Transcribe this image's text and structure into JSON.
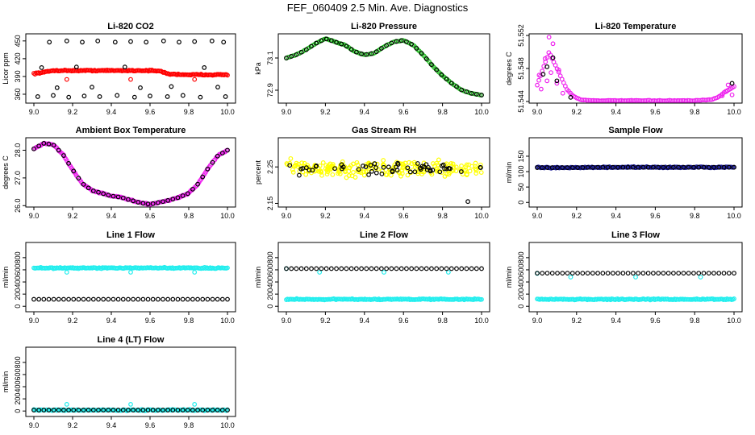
{
  "main_title": "FEF_060409  2.5 Min. Ave. Diagnostics",
  "colors": {
    "black": "#000000",
    "red": "#ff0000",
    "green": "#22bb22",
    "magenta": "#ee22ee",
    "yellow": "#ffff00",
    "blue": "#1a1a99",
    "cyan": "#22eeee"
  },
  "chart_data": [
    {
      "id": "co2",
      "type": "scatter",
      "title": "Li-820 CO2",
      "ylabel": "Licor ppm",
      "xlim": [
        9.0,
        10.0
      ],
      "ylim": [
        345,
        462
      ],
      "xticks": [
        "9.0",
        "9.2",
        "9.4",
        "9.6",
        "9.8",
        "10.0"
      ],
      "yticks": [
        "360",
        "390",
        "420",
        "450"
      ],
      "series": [
        {
          "name": "avg",
          "color": "red",
          "style": "band",
          "x": [
            9.0,
            9.05,
            9.1,
            9.2,
            9.3,
            9.4,
            9.5,
            9.6,
            9.65,
            9.7,
            9.8,
            9.9,
            10.0
          ],
          "y": [
            395,
            397,
            400,
            400,
            400,
            400,
            400,
            400,
            399,
            394,
            393,
            393,
            393
          ]
        },
        {
          "name": "red-outliers",
          "color": "red",
          "style": "points",
          "x": [
            9.17,
            9.5,
            9.83
          ],
          "y": [
            385,
            385,
            385
          ]
        },
        {
          "name": "black-hi",
          "color": "black",
          "style": "points",
          "x": [
            9.08,
            9.17,
            9.25,
            9.33,
            9.42,
            9.5,
            9.58,
            9.67,
            9.75,
            9.83,
            9.92,
            9.98
          ],
          "y": [
            448,
            450,
            448,
            450,
            448,
            449,
            448,
            450,
            448,
            449,
            450,
            448
          ]
        },
        {
          "name": "black-lo",
          "color": "black",
          "style": "points",
          "x": [
            9.02,
            9.1,
            9.18,
            9.26,
            9.34,
            9.43,
            9.52,
            9.6,
            9.69,
            9.77,
            9.86,
            9.99
          ],
          "y": [
            356,
            358,
            355,
            357,
            356,
            358,
            355,
            357,
            356,
            358,
            355,
            356
          ]
        },
        {
          "name": "black-mid",
          "color": "black",
          "style": "points",
          "x": [
            9.04,
            9.12,
            9.22,
            9.3,
            9.47,
            9.55,
            9.71,
            9.88,
            9.95
          ],
          "y": [
            405,
            371,
            406,
            372,
            406,
            371,
            373,
            405,
            372
          ]
        }
      ]
    },
    {
      "id": "press",
      "type": "scatter",
      "title": "Li-820 Pressure",
      "ylabel": "kPa",
      "xlim": [
        9.0,
        10.0
      ],
      "ylim": [
        72.82,
        73.25
      ],
      "xticks": [
        "9.0",
        "9.2",
        "9.4",
        "9.6",
        "9.8",
        "10.0"
      ],
      "yticks": [
        "72.9",
        "73.1"
      ],
      "series": [
        {
          "name": "avg",
          "color": "green",
          "style": "curve",
          "x": [
            9.0,
            9.05,
            9.1,
            9.15,
            9.2,
            9.25,
            9.3,
            9.35,
            9.4,
            9.45,
            9.5,
            9.55,
            9.6,
            9.65,
            9.7,
            9.75,
            9.8,
            9.85,
            9.9,
            9.95,
            10.0
          ],
          "y": [
            73.1,
            73.12,
            73.15,
            73.19,
            73.22,
            73.2,
            73.18,
            73.14,
            73.12,
            73.13,
            73.17,
            73.2,
            73.21,
            73.18,
            73.12,
            73.05,
            72.99,
            72.94,
            72.9,
            72.88,
            72.87
          ]
        },
        {
          "name": "scaled",
          "color": "black",
          "style": "curve-points",
          "x": [
            9.0,
            9.05,
            9.1,
            9.15,
            9.2,
            9.25,
            9.3,
            9.35,
            9.4,
            9.45,
            9.5,
            9.55,
            9.6,
            9.65,
            9.7,
            9.75,
            9.8,
            9.85,
            9.9,
            9.95,
            10.0
          ],
          "y": [
            73.1,
            73.12,
            73.15,
            73.19,
            73.22,
            73.2,
            73.18,
            73.14,
            73.12,
            73.13,
            73.17,
            73.2,
            73.21,
            73.18,
            73.12,
            73.05,
            72.99,
            72.94,
            72.9,
            72.88,
            72.87
          ]
        }
      ]
    },
    {
      "id": "temp",
      "type": "scatter",
      "title": "Li-820 Temperature",
      "ylabel": "degrees C",
      "xlim": [
        9.0,
        10.0
      ],
      "ylim": [
        51.5438,
        51.5522
      ],
      "xticks": [
        "9.0",
        "9.2",
        "9.4",
        "9.6",
        "9.8",
        "10.0"
      ],
      "yticks": [
        "51.544",
        "51.548",
        "51.552"
      ],
      "series": [
        {
          "name": "avg",
          "color": "magenta",
          "style": "curve",
          "x": [
            9.0,
            9.03,
            9.06,
            9.09,
            9.12,
            9.15,
            9.18,
            9.22,
            9.3,
            9.4,
            9.5,
            9.6,
            9.7,
            9.8,
            9.88,
            9.92,
            9.95,
            9.98,
            10.0
          ],
          "y": [
            51.546,
            51.548,
            51.55,
            51.5485,
            51.547,
            51.5455,
            51.5447,
            51.5442,
            51.5441,
            51.5441,
            51.5441,
            51.5441,
            51.5441,
            51.5441,
            51.5442,
            51.5445,
            51.5451,
            51.5455,
            51.5458
          ]
        },
        {
          "name": "spread",
          "color": "magenta",
          "style": "points",
          "x": [
            9.01,
            9.02,
            9.04,
            9.05,
            9.06,
            9.07,
            9.08,
            9.1,
            9.11,
            9.13,
            9.94,
            9.96,
            9.97,
            9.99
          ],
          "y": [
            51.5472,
            51.5455,
            51.5492,
            51.5465,
            51.5518,
            51.5475,
            51.551,
            51.5462,
            51.5478,
            51.545,
            51.5447,
            51.5452,
            51.546,
            51.5448
          ]
        },
        {
          "name": "scaled",
          "color": "black",
          "style": "points",
          "x": [
            9.03,
            9.05,
            9.08,
            9.1,
            9.17,
            9.99
          ],
          "y": [
            51.5473,
            51.5482,
            51.5493,
            51.5465,
            51.5445,
            51.5462
          ]
        }
      ]
    },
    {
      "id": "ambient",
      "type": "scatter",
      "title": "Ambient Box Temperature",
      "ylabel": "degrees C",
      "xlim": [
        9.0,
        10.0
      ],
      "ylim": [
        25.95,
        28.45
      ],
      "xticks": [
        "9.0",
        "9.2",
        "9.4",
        "9.6",
        "9.8",
        "10.0"
      ],
      "yticks": [
        "26.0",
        "27.0",
        "28.0"
      ],
      "series": [
        {
          "name": "avg",
          "color": "magenta",
          "style": "band",
          "x": [
            9.0,
            9.05,
            9.1,
            9.15,
            9.2,
            9.25,
            9.3,
            9.35,
            9.4,
            9.45,
            9.5,
            9.55,
            9.6,
            9.65,
            9.7,
            9.75,
            9.8,
            9.85,
            9.9,
            9.95,
            10.0
          ],
          "y": [
            28.05,
            28.25,
            28.2,
            27.85,
            27.3,
            26.8,
            26.55,
            26.45,
            26.35,
            26.3,
            26.2,
            26.1,
            26.05,
            26.12,
            26.2,
            26.3,
            26.45,
            26.8,
            27.35,
            27.8,
            28.0
          ]
        },
        {
          "name": "scaled",
          "color": "black",
          "style": "curve-points",
          "x": [
            9.0,
            9.05,
            9.1,
            9.15,
            9.2,
            9.25,
            9.3,
            9.35,
            9.4,
            9.45,
            9.5,
            9.55,
            9.6,
            9.65,
            9.7,
            9.75,
            9.8,
            9.85,
            9.9,
            9.95,
            10.0
          ],
          "y": [
            28.05,
            28.25,
            28.2,
            27.85,
            27.3,
            26.8,
            26.55,
            26.45,
            26.35,
            26.3,
            26.2,
            26.1,
            26.05,
            26.12,
            26.2,
            26.3,
            26.45,
            26.8,
            27.35,
            27.8,
            28.0
          ]
        }
      ]
    },
    {
      "id": "rh",
      "type": "scatter",
      "title": "Gas Stream RH",
      "ylabel": "percent",
      "xlim": [
        9.0,
        10.0
      ],
      "ylim": [
        2.14,
        2.33
      ],
      "xticks": [
        "9.0",
        "9.2",
        "9.4",
        "9.6",
        "9.8",
        "10.0"
      ],
      "yticks": [
        "2.15",
        "2.25"
      ],
      "series": [
        {
          "name": "avg",
          "color": "yellow",
          "style": "scatter-band",
          "x": [
            9.0,
            10.0
          ],
          "y": [
            2.245,
            2.245
          ],
          "spread": 0.03
        },
        {
          "name": "scaled",
          "color": "black",
          "style": "scatter-band",
          "x": [
            9.0,
            10.0
          ],
          "y": [
            2.245,
            2.245
          ],
          "spread": 0.022
        },
        {
          "name": "low",
          "color": "black",
          "style": "points",
          "x": [
            9.93
          ],
          "y": [
            2.155
          ]
        }
      ]
    },
    {
      "id": "sample",
      "type": "scatter",
      "title": "Sample Flow",
      "ylabel": "ml/min",
      "xlim": [
        9.0,
        10.0
      ],
      "ylim": [
        -15,
        210
      ],
      "xticks": [
        "9.0",
        "9.2",
        "9.4",
        "9.6",
        "9.8",
        "10.0"
      ],
      "yticks": [
        "0",
        "50",
        "100",
        "150"
      ],
      "series": [
        {
          "name": "avg",
          "color": "blue",
          "style": "band",
          "x": [
            9.0,
            9.5,
            10.0
          ],
          "y": [
            113,
            114,
            114
          ]
        },
        {
          "name": "scaled",
          "color": "black",
          "style": "curve-points",
          "x": [
            9.0,
            9.05,
            9.1,
            9.15,
            9.2,
            9.3,
            9.4,
            9.5,
            9.6,
            9.7,
            9.8,
            9.9,
            9.95,
            10.0
          ],
          "y": [
            113,
            113,
            113,
            113,
            113,
            114,
            114,
            114,
            114,
            114,
            114,
            114,
            114,
            114
          ]
        }
      ]
    },
    {
      "id": "line1",
      "type": "scatter",
      "title": "Line 1 Flow",
      "ylabel": "ml/min",
      "xlim": [
        9.0,
        10.0
      ],
      "ylim": [
        -90,
        1050
      ],
      "xticks": [
        "9.0",
        "9.2",
        "9.4",
        "9.6",
        "9.8",
        "10.0"
      ],
      "yticks": [
        "0",
        "200",
        "400",
        "600",
        "800"
      ],
      "series": [
        {
          "name": "cyan-hi",
          "color": "cyan",
          "style": "band",
          "x": [
            9.0,
            10.0
          ],
          "y": [
            630,
            630
          ]
        },
        {
          "name": "cyan-outliers",
          "color": "cyan",
          "style": "points",
          "x": [
            9.17,
            9.5,
            9.83
          ],
          "y": [
            560,
            560,
            560
          ]
        },
        {
          "name": "black-lo",
          "color": "black",
          "style": "curve-points",
          "x": [
            9.0,
            10.0
          ],
          "y": [
            115,
            115
          ]
        }
      ]
    },
    {
      "id": "line2",
      "type": "scatter",
      "title": "Line 2 Flow",
      "ylabel": "ml/min",
      "xlim": [
        9.0,
        10.0
      ],
      "ylim": [
        -90,
        1050
      ],
      "xticks": [
        "9.0",
        "9.2",
        "9.4",
        "9.6",
        "9.8",
        "10.0"
      ],
      "yticks": [
        "0",
        "200",
        "400",
        "600",
        "800"
      ],
      "series": [
        {
          "name": "cyan-lo",
          "color": "cyan",
          "style": "band",
          "x": [
            9.0,
            10.0
          ],
          "y": [
            115,
            115
          ]
        },
        {
          "name": "cyan-outliers",
          "color": "cyan",
          "style": "points",
          "x": [
            9.0,
            9.17,
            9.5,
            9.83
          ],
          "y": [
            620,
            560,
            560,
            560
          ]
        },
        {
          "name": "black-hi",
          "color": "black",
          "style": "curve-points",
          "x": [
            9.0,
            10.0
          ],
          "y": [
            620,
            620
          ]
        }
      ]
    },
    {
      "id": "line3",
      "type": "scatter",
      "title": "Line 3 Flow",
      "ylabel": "ml/min",
      "xlim": [
        9.0,
        10.0
      ],
      "ylim": [
        -90,
        1050
      ],
      "xticks": [
        "9.0",
        "9.2",
        "9.4",
        "9.6",
        "9.8",
        "10.0"
      ],
      "yticks": [
        "0",
        "200",
        "400",
        "600",
        "800"
      ],
      "series": [
        {
          "name": "cyan-lo",
          "color": "cyan",
          "style": "band",
          "x": [
            9.0,
            10.0
          ],
          "y": [
            115,
            115
          ]
        },
        {
          "name": "cyan-outliers",
          "color": "cyan",
          "style": "points",
          "x": [
            9.0,
            9.17,
            9.5,
            9.83
          ],
          "y": [
            540,
            480,
            480,
            480
          ]
        },
        {
          "name": "black-hi",
          "color": "black",
          "style": "curve-points",
          "x": [
            9.0,
            10.0
          ],
          "y": [
            545,
            545
          ]
        }
      ]
    },
    {
      "id": "line4",
      "type": "scatter",
      "title": "Line 4 (LT) Flow",
      "ylabel": "ml/min",
      "xlim": [
        9.0,
        10.0
      ],
      "ylim": [
        -90,
        1050
      ],
      "xticks": [
        "9.0",
        "9.2",
        "9.4",
        "9.6",
        "9.8",
        "10.0"
      ],
      "yticks": [
        "0",
        "200",
        "400",
        "600",
        "800"
      ],
      "series": [
        {
          "name": "cyan-lo",
          "color": "cyan",
          "style": "band",
          "x": [
            9.0,
            10.0
          ],
          "y": [
            15,
            15
          ]
        },
        {
          "name": "cyan-outliers",
          "color": "cyan",
          "style": "points",
          "x": [
            9.17,
            9.5,
            9.83
          ],
          "y": [
            110,
            110,
            110
          ]
        },
        {
          "name": "black-lo",
          "color": "black",
          "style": "curve-points",
          "x": [
            9.0,
            10.0
          ],
          "y": [
            15,
            15
          ]
        }
      ]
    }
  ]
}
